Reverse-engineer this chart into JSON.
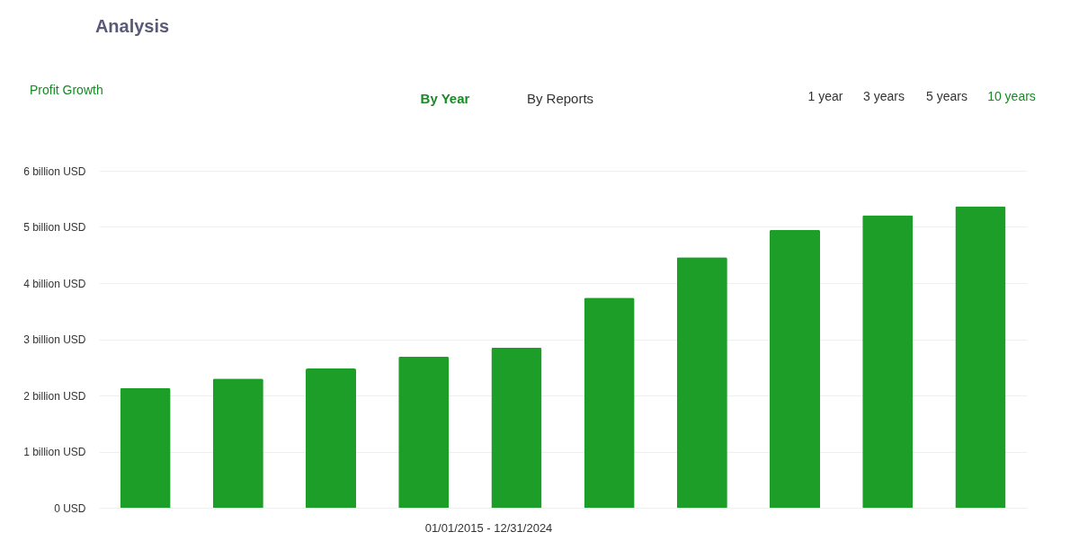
{
  "chart_data": {
    "type": "bar",
    "title": "Analysis",
    "xlabel": "01/01/2015 - 12/31/2024",
    "annotations": [
      "Profit Growth",
      "By Year",
      "By Reports",
      "1 year",
      "3 years",
      "5 years",
      "10 years"
    ],
    "categories": [
      null,
      null,
      null,
      null,
      null,
      null,
      null,
      null,
      null,
      null
    ],
    "series": [
      {
        "color": "#1c9e29",
        "values": [
          2.13,
          2.3,
          2.48,
          2.69,
          2.85,
          3.74,
          4.46,
          4.95,
          5.21,
          5.37
        ]
      }
    ],
    "ylim": [
      0,
      6
    ],
    "yticks": [
      {
        "value": 0,
        "label": "0 USD"
      },
      {
        "value": 1,
        "label": "1 billion USD"
      },
      {
        "value": 2,
        "label": "2 billion USD"
      },
      {
        "value": 3,
        "label": "3 billion USD"
      },
      {
        "value": 4,
        "label": "4 billion USD"
      },
      {
        "value": 5,
        "label": "5 billion USD"
      },
      {
        "value": 6,
        "label": "6 billion USD"
      }
    ],
    "grid": "y",
    "tick_labels": "y"
  }
}
